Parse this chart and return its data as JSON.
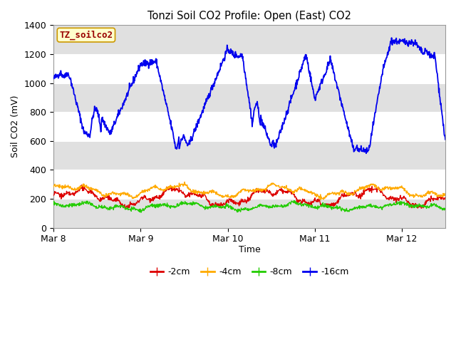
{
  "title": "Tonzi Soil CO2 Profile: Open (East) CO2",
  "ylabel": "Soil CO2 (mV)",
  "xlabel": "Time",
  "watermark": "TZ_soilco2",
  "ylim": [
    0,
    1400
  ],
  "legend_labels": [
    "-2cm",
    "-4cm",
    "-8cm",
    "-16cm"
  ],
  "legend_colors": [
    "#dd0000",
    "#ffaa00",
    "#22cc00",
    "#0000ee"
  ],
  "bg_color": "#ffffff",
  "plot_bg_color": "#ffffff",
  "band_color": "#e0e0e0",
  "xtick_labels": [
    "Mar 8",
    "Mar 9",
    "Mar 10",
    "Mar 11",
    "Mar 12"
  ],
  "xtick_pos": [
    0,
    1,
    2,
    3,
    4
  ],
  "ytick_values": [
    0,
    200,
    400,
    600,
    800,
    1000,
    1200,
    1400
  ],
  "xlim": [
    0,
    4.5
  ]
}
